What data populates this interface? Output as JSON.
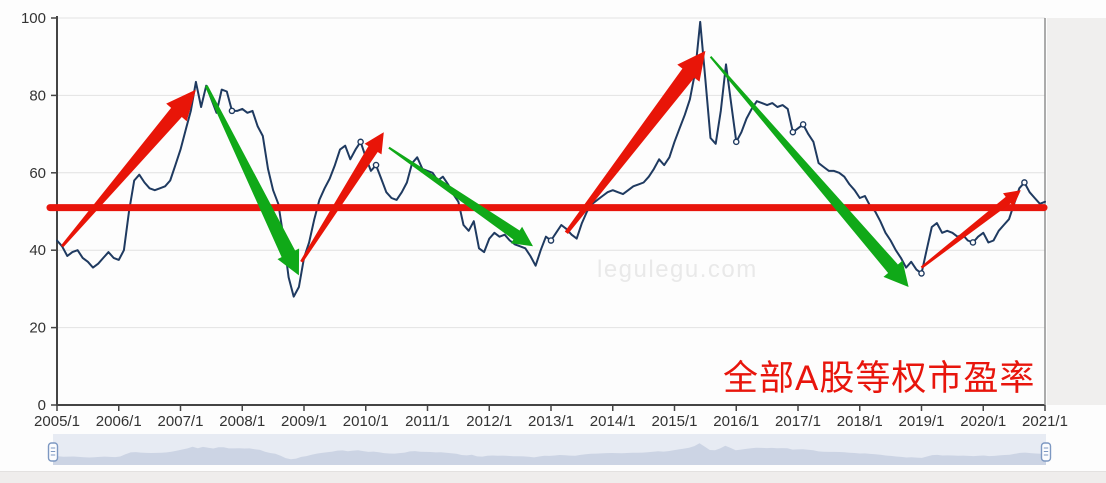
{
  "chart_data": {
    "type": "line",
    "title": "全部A股等权市盈率",
    "title_color": "#e8150c",
    "watermark": "legulegu.com",
    "x_start": "2005/1",
    "x_end": "2021/1",
    "x_interval": "monthly",
    "x_tick_labels": [
      "2005/1",
      "2006/1",
      "2007/1",
      "2008/1",
      "2009/1",
      "2010/1",
      "2011/1",
      "2012/1",
      "2013/1",
      "2014/1",
      "2015/1",
      "2016/1",
      "2017/1",
      "2018/1",
      "2019/1",
      "2020/1",
      "2021/1"
    ],
    "y_ticks": [
      0,
      20,
      40,
      60,
      80,
      100
    ],
    "ylim": [
      0,
      100
    ],
    "grid": true,
    "colors": {
      "line": "#1f3a60",
      "grid": "#e2e2e2",
      "axis": "#444444",
      "right_border": "#909090",
      "tick_label": "#333333",
      "slider_band": "#e7ebf3",
      "slider_shadow": "#ccd4e4",
      "slider_handle": "#7d98c2"
    },
    "series": [
      {
        "name": "全部A股等权市盈率",
        "color": "#1f3a60",
        "values_monthly_from_2005_01": [
          42.5,
          41,
          38.5,
          39.5,
          40,
          38,
          37,
          35.5,
          36.5,
          38,
          39.5,
          38,
          37.5,
          40,
          50,
          58,
          59.5,
          57.5,
          56,
          55.5,
          56,
          56.5,
          58,
          62,
          66,
          71,
          76,
          83.5,
          77,
          82.5,
          79,
          75.5,
          81.5,
          81,
          76,
          76,
          76.5,
          75.5,
          76,
          72,
          69.5,
          61,
          55.5,
          52,
          43.5,
          33,
          28,
          30.5,
          38,
          42,
          48,
          53,
          56,
          58.5,
          62,
          66,
          67,
          63.5,
          66,
          68,
          64,
          60.5,
          62,
          58.5,
          55,
          53.5,
          53,
          55,
          57.5,
          62.5,
          64,
          61,
          60.5,
          60,
          58,
          59,
          57,
          54.5,
          52.5,
          46.5,
          45,
          47.5,
          40.5,
          39.5,
          43,
          44.5,
          43.5,
          44,
          42.5,
          41.5,
          41,
          40.5,
          38.5,
          36,
          40,
          43.5,
          42.5,
          44.5,
          46.5,
          45.5,
          44,
          43,
          47,
          50,
          52,
          53,
          54,
          55,
          55.5,
          55,
          54.5,
          55.5,
          56.5,
          57,
          57.5,
          59,
          61,
          63.5,
          62,
          64,
          68,
          71.5,
          75,
          79,
          86,
          99,
          84,
          69,
          67.5,
          76,
          88,
          78,
          68,
          70.5,
          74,
          76.5,
          78.5,
          78,
          77.5,
          78,
          77,
          77.5,
          76.5,
          70.5,
          71.5,
          72.5,
          70,
          68,
          62.5,
          61.5,
          60.5,
          60.5,
          60,
          59,
          57,
          55.5,
          53.5,
          54,
          51.5,
          50,
          47.5,
          44.5,
          42.5,
          40,
          38,
          35.5,
          37,
          35,
          34,
          40,
          46,
          47,
          44.5,
          45,
          44.5,
          43.5,
          44,
          42.5,
          42,
          43.5,
          44.5,
          42,
          42.5,
          45,
          46.5,
          48,
          52,
          56,
          57.5,
          55,
          53.5,
          52,
          52.5
        ]
      }
    ],
    "marker_point_indices": [
      34,
      59,
      62,
      96,
      132,
      143,
      145,
      168,
      178,
      188
    ],
    "reference_line": {
      "value": 51,
      "color": "#e8150c",
      "width": 7
    },
    "annotations": {
      "arrows": [
        {
          "name": "2005-2007-rally",
          "direction": "up",
          "color": "#e81508",
          "from": {
            "month": 1,
            "value": 41
          },
          "to": {
            "month": 27,
            "value": 81.5
          },
          "tail_w": 3,
          "shaft_w": 14,
          "head_len": 30,
          "head_w": 27
        },
        {
          "name": "2007-2008-crash",
          "direction": "down",
          "color": "#10a918",
          "from": {
            "month": 29,
            "value": 82.5
          },
          "to": {
            "month": 47,
            "value": 33.5
          },
          "tail_w": 3,
          "shaft_w": 15,
          "head_len": 24,
          "head_w": 24
        },
        {
          "name": "2009-rebound",
          "direction": "up",
          "color": "#e81508",
          "from": {
            "month": 47.5,
            "value": 37
          },
          "to": {
            "month": 63.5,
            "value": 70.5
          },
          "tail_w": 3,
          "shaft_w": 11,
          "head_len": 20,
          "head_w": 20
        },
        {
          "name": "2010-2012-decline",
          "direction": "down",
          "color": "#10a918",
          "from": {
            "month": 64.5,
            "value": 66.5
          },
          "to": {
            "month": 92.5,
            "value": 41
          },
          "tail_w": 2,
          "shaft_w": 11,
          "head_len": 20,
          "head_w": 20
        },
        {
          "name": "2013-2015-rally",
          "direction": "up",
          "color": "#e81508",
          "from": {
            "month": 99,
            "value": 44.5
          },
          "to": {
            "month": 126,
            "value": 91.5
          },
          "tail_w": 4,
          "shaft_w": 15,
          "head_len": 28,
          "head_w": 28
        },
        {
          "name": "2015-2018-decline",
          "direction": "down",
          "color": "#10a918",
          "from": {
            "month": 127,
            "value": 90
          },
          "to": {
            "month": 165.5,
            "value": 30.5
          },
          "tail_w": 2,
          "shaft_w": 13,
          "head_len": 24,
          "head_w": 25
        },
        {
          "name": "2019-2020-recovery",
          "direction": "up",
          "color": "#e81508",
          "from": {
            "month": 168,
            "value": 35.5
          },
          "to": {
            "month": 187.3,
            "value": 55.5
          },
          "tail_w": 2.5,
          "shaft_w": 8,
          "head_len": 16,
          "head_w": 17
        }
      ]
    },
    "slider": {
      "present": true,
      "range_selected": "full"
    }
  }
}
